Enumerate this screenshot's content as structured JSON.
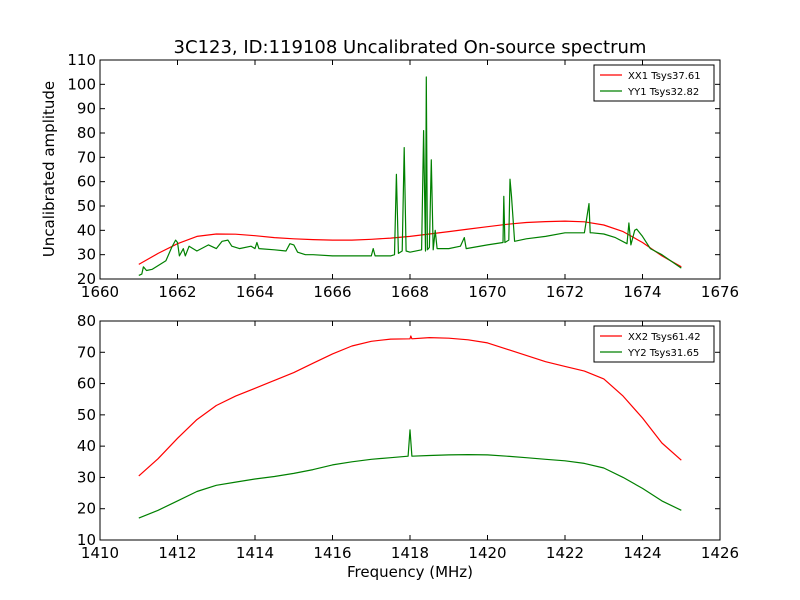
{
  "chart_data": [
    {
      "type": "line",
      "title": "3C123, ID:119108 Uncalibrated On-source spectrum",
      "xlabel": "",
      "ylabel": "Uncalibrated amplitude",
      "xlim": [
        1660,
        1676
      ],
      "ylim": [
        20,
        110
      ],
      "xticks": [
        1660,
        1662,
        1664,
        1666,
        1668,
        1670,
        1672,
        1674,
        1676
      ],
      "yticks": [
        20,
        30,
        40,
        50,
        60,
        70,
        80,
        90,
        100,
        110
      ],
      "legend_position": "top-right",
      "grid": false,
      "series": [
        {
          "name": "XX1 Tsys37.61",
          "color": "#ff0000",
          "x": [
            1661.0,
            1661.5,
            1662.0,
            1662.5,
            1663.0,
            1663.5,
            1664.0,
            1664.5,
            1665.0,
            1665.5,
            1666.0,
            1666.5,
            1667.0,
            1667.5,
            1668.0,
            1668.5,
            1669.0,
            1669.5,
            1670.0,
            1670.5,
            1671.0,
            1671.5,
            1672.0,
            1672.5,
            1673.0,
            1673.5,
            1674.0,
            1674.5,
            1675.0
          ],
          "y": [
            26.0,
            30.5,
            34.5,
            37.5,
            38.5,
            38.4,
            37.8,
            37.0,
            36.5,
            36.2,
            36.0,
            36.0,
            36.3,
            36.8,
            37.5,
            38.5,
            39.5,
            40.5,
            41.5,
            42.5,
            43.2,
            43.6,
            43.8,
            43.5,
            42.2,
            39.5,
            35.0,
            29.5,
            25.0
          ]
        },
        {
          "name": "YY1 Tsys32.82",
          "color": "#008000",
          "x": [
            1661.0,
            1661.08,
            1661.12,
            1661.2,
            1661.35,
            1661.5,
            1661.7,
            1661.85,
            1661.95,
            1662.0,
            1662.05,
            1662.15,
            1662.2,
            1662.3,
            1662.5,
            1662.8,
            1663.0,
            1663.15,
            1663.3,
            1663.4,
            1663.6,
            1663.9,
            1664.0,
            1664.05,
            1664.1,
            1664.5,
            1664.8,
            1664.9,
            1665.0,
            1665.1,
            1665.3,
            1665.5,
            1666.0,
            1666.5,
            1667.0,
            1667.05,
            1667.1,
            1667.5,
            1667.6,
            1667.65,
            1667.7,
            1667.8,
            1667.85,
            1667.9,
            1668.0,
            1668.3,
            1668.35,
            1668.4,
            1668.42,
            1668.45,
            1668.5,
            1668.55,
            1668.6,
            1668.65,
            1668.7,
            1669.0,
            1669.3,
            1669.4,
            1669.45,
            1670.0,
            1670.4,
            1670.42,
            1670.45,
            1670.55,
            1670.58,
            1670.62,
            1670.7,
            1671.0,
            1671.5,
            1672.0,
            1672.5,
            1672.62,
            1672.65,
            1672.7,
            1673.0,
            1673.3,
            1673.6,
            1673.65,
            1673.7,
            1673.8,
            1673.85,
            1674.0,
            1674.2,
            1674.5,
            1675.0
          ],
          "y": [
            21.5,
            22.0,
            25.0,
            23.5,
            24.0,
            25.5,
            27.5,
            33.0,
            36.0,
            35.0,
            29.5,
            32.5,
            29.5,
            33.5,
            31.5,
            34.0,
            32.5,
            35.5,
            36.0,
            33.5,
            32.5,
            33.5,
            32.5,
            35.0,
            32.5,
            32.0,
            31.5,
            34.5,
            34.0,
            31.0,
            30.0,
            30.0,
            29.5,
            29.5,
            29.5,
            32.5,
            29.5,
            29.5,
            30.0,
            63.0,
            30.5,
            31.5,
            74.0,
            31.5,
            31.0,
            32.0,
            81.0,
            31.5,
            103.0,
            32.0,
            33.0,
            69.0,
            32.0,
            40.0,
            32.5,
            32.5,
            33.5,
            37.0,
            32.5,
            34.0,
            35.0,
            54.0,
            35.0,
            36.0,
            61.0,
            54.0,
            35.5,
            36.5,
            37.5,
            39.0,
            39.0,
            51.0,
            39.0,
            39.0,
            38.5,
            37.0,
            34.5,
            43.0,
            34.0,
            40.0,
            40.5,
            37.5,
            32.5,
            30.0,
            24.5
          ]
        }
      ]
    },
    {
      "type": "line",
      "title": "",
      "xlabel": "Frequency (MHz)",
      "ylabel": "",
      "xlim": [
        1410,
        1426
      ],
      "ylim": [
        10,
        80
      ],
      "xticks": [
        1410,
        1412,
        1414,
        1416,
        1418,
        1420,
        1422,
        1424,
        1426
      ],
      "yticks": [
        10,
        20,
        30,
        40,
        50,
        60,
        70,
        80
      ],
      "legend_position": "top-right",
      "grid": false,
      "series": [
        {
          "name": "XX2 Tsys61.42",
          "color": "#ff0000",
          "x": [
            1411.0,
            1411.5,
            1412.0,
            1412.5,
            1413.0,
            1413.5,
            1414.0,
            1414.5,
            1415.0,
            1415.5,
            1416.0,
            1416.5,
            1417.0,
            1417.5,
            1418.0,
            1418.02,
            1418.05,
            1418.5,
            1419.0,
            1419.5,
            1420.0,
            1420.5,
            1421.0,
            1421.5,
            1422.0,
            1422.5,
            1423.0,
            1423.5,
            1424.0,
            1424.5,
            1425.0
          ],
          "y": [
            30.5,
            36.0,
            42.5,
            48.5,
            53.0,
            56.0,
            58.5,
            61.0,
            63.5,
            66.5,
            69.5,
            72.0,
            73.5,
            74.2,
            74.3,
            75.2,
            74.3,
            74.7,
            74.5,
            74.0,
            73.0,
            71.0,
            69.0,
            67.0,
            65.5,
            64.0,
            61.5,
            56.0,
            49.0,
            41.0,
            35.5
          ]
        },
        {
          "name": "YY2 Tsys31.65",
          "color": "#008000",
          "x": [
            1411.0,
            1411.5,
            1412.0,
            1412.5,
            1413.0,
            1413.5,
            1414.0,
            1414.5,
            1415.0,
            1415.5,
            1416.0,
            1416.5,
            1417.0,
            1417.5,
            1417.95,
            1418.0,
            1418.05,
            1418.5,
            1419.0,
            1419.5,
            1420.0,
            1420.5,
            1421.0,
            1421.5,
            1422.0,
            1422.5,
            1423.0,
            1423.5,
            1424.0,
            1424.5,
            1425.0
          ],
          "y": [
            17.0,
            19.5,
            22.5,
            25.5,
            27.5,
            28.5,
            29.5,
            30.3,
            31.3,
            32.5,
            34.0,
            35.0,
            35.8,
            36.3,
            36.8,
            45.2,
            36.8,
            37.0,
            37.2,
            37.3,
            37.2,
            36.8,
            36.3,
            35.8,
            35.3,
            34.5,
            33.0,
            30.0,
            26.5,
            22.5,
            19.5
          ]
        }
      ]
    }
  ]
}
